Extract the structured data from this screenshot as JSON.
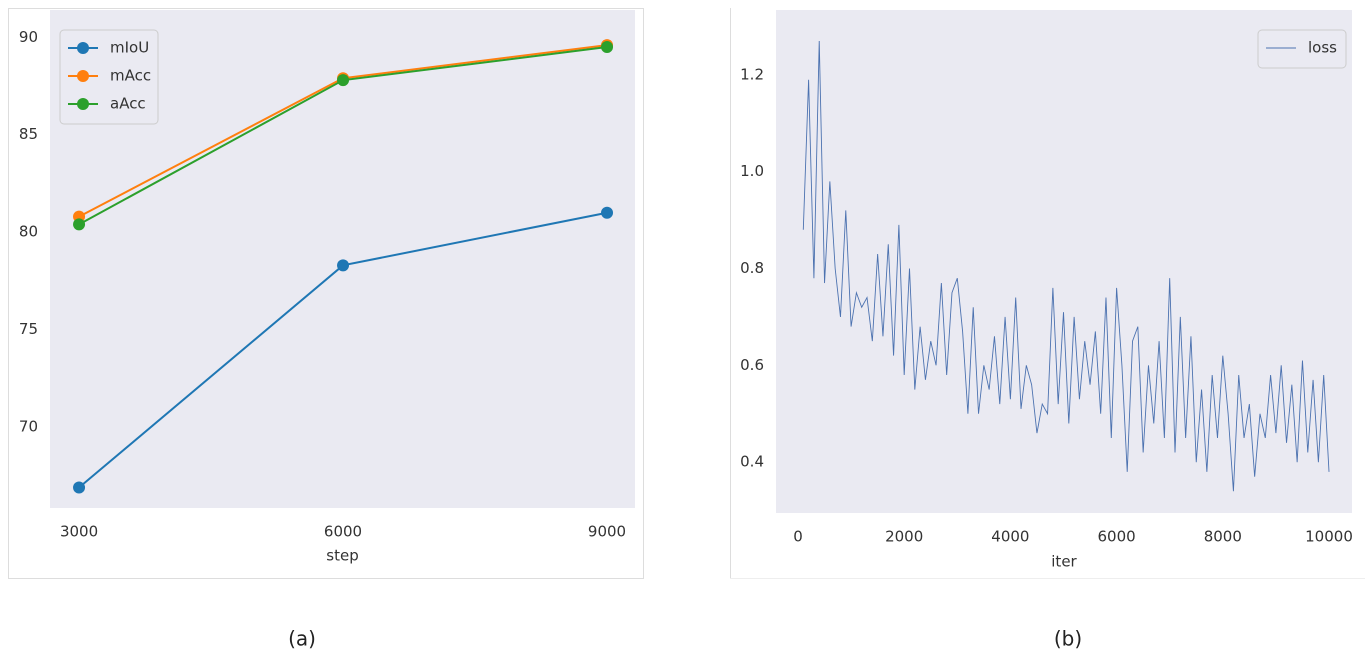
{
  "chart_data": [
    {
      "type": "line",
      "xlabel": "step",
      "caption": "(a)",
      "x": [
        3000,
        6000,
        9000
      ],
      "series": [
        {
          "name": "mIoU",
          "color": "#1f77b4",
          "values": [
            66.9,
            78.3,
            81.0
          ]
        },
        {
          "name": "mAcc",
          "color": "#ff7f0e",
          "values": [
            80.8,
            87.9,
            89.6
          ]
        },
        {
          "name": "aAcc",
          "color": "#2ca02c",
          "values": [
            80.4,
            87.8,
            89.5
          ]
        }
      ],
      "markers": true,
      "xlim": [
        2670,
        9318
      ],
      "xticks": [
        3000,
        6000,
        9000
      ],
      "ylim": [
        65.85,
        91.4
      ],
      "yticks": [
        70,
        75,
        80,
        85,
        90
      ],
      "grid": false,
      "legend": "upper left"
    },
    {
      "type": "line",
      "xlabel": "iter",
      "caption": "(b)",
      "x": [
        100,
        200,
        300,
        400,
        500,
        600,
        700,
        800,
        900,
        1000,
        1100,
        1200,
        1300,
        1400,
        1500,
        1600,
        1700,
        1800,
        1900,
        2000,
        2100,
        2200,
        2300,
        2400,
        2500,
        2600,
        2700,
        2800,
        2900,
        3000,
        3100,
        3200,
        3300,
        3400,
        3500,
        3600,
        3700,
        3800,
        3900,
        4000,
        4100,
        4200,
        4300,
        4400,
        4500,
        4600,
        4700,
        4800,
        4900,
        5000,
        5100,
        5200,
        5300,
        5400,
        5500,
        5600,
        5700,
        5800,
        5900,
        6000,
        6100,
        6200,
        6300,
        6400,
        6500,
        6600,
        6700,
        6800,
        6900,
        7000,
        7100,
        7200,
        7300,
        7400,
        7500,
        7600,
        7700,
        7800,
        7900,
        8000,
        8100,
        8200,
        8300,
        8400,
        8500,
        8600,
        8700,
        8800,
        8900,
        9000,
        9100,
        9200,
        9300,
        9400,
        9500,
        9600,
        9700,
        9800,
        9900,
        10000
      ],
      "series": [
        {
          "name": "loss",
          "color": "#4c72b0",
          "values": [
            0.88,
            1.19,
            0.78,
            1.27,
            0.77,
            0.98,
            0.8,
            0.7,
            0.92,
            0.68,
            0.75,
            0.72,
            0.74,
            0.65,
            0.83,
            0.66,
            0.85,
            0.62,
            0.89,
            0.58,
            0.8,
            0.55,
            0.68,
            0.57,
            0.65,
            0.6,
            0.77,
            0.58,
            0.75,
            0.78,
            0.67,
            0.5,
            0.72,
            0.5,
            0.6,
            0.55,
            0.66,
            0.52,
            0.7,
            0.53,
            0.74,
            0.51,
            0.6,
            0.56,
            0.46,
            0.52,
            0.5,
            0.76,
            0.52,
            0.71,
            0.48,
            0.7,
            0.53,
            0.65,
            0.56,
            0.67,
            0.5,
            0.74,
            0.45,
            0.76,
            0.6,
            0.38,
            0.65,
            0.68,
            0.42,
            0.6,
            0.48,
            0.65,
            0.45,
            0.78,
            0.42,
            0.7,
            0.45,
            0.66,
            0.4,
            0.55,
            0.38,
            0.58,
            0.45,
            0.62,
            0.5,
            0.34,
            0.58,
            0.45,
            0.52,
            0.37,
            0.5,
            0.45,
            0.58,
            0.46,
            0.6,
            0.44,
            0.56,
            0.4,
            0.61,
            0.42,
            0.57,
            0.4,
            0.58,
            0.38
          ]
        }
      ],
      "markers": false,
      "xlim": [
        -414,
        10433
      ],
      "xticks": [
        0,
        2000,
        4000,
        6000,
        8000,
        10000
      ],
      "ylim": [
        0.295,
        1.334
      ],
      "yticks": [
        0.4,
        0.6,
        0.8,
        {
          "value": 1,
          "label": "1.0"
        },
        1.2
      ],
      "grid": false,
      "legend": "upper right"
    }
  ]
}
